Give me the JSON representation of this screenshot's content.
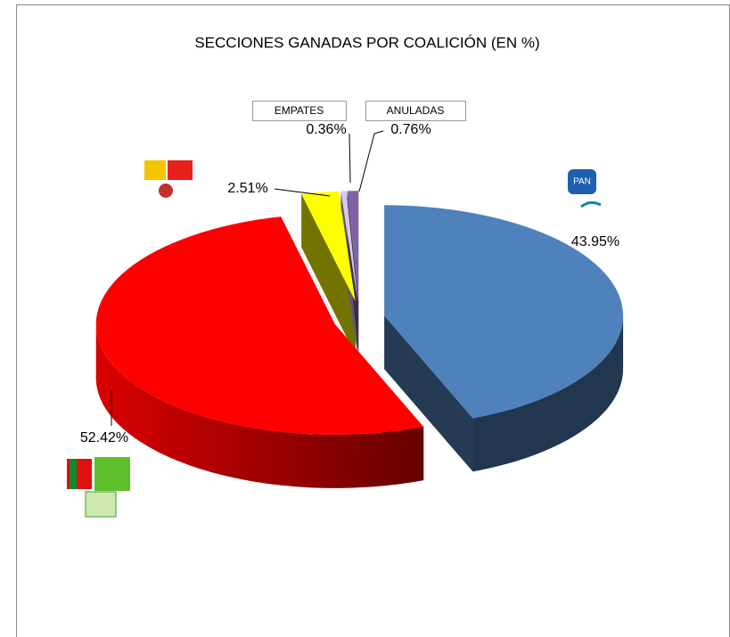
{
  "chart_data": {
    "type": "pie3d",
    "title": "SECCIONES GANADAS POR COALICIÓN (EN %)",
    "categories": [
      null,
      null,
      null,
      "EMPATES",
      "ANULADAS"
    ],
    "values": [
      43.95,
      52.42,
      2.51,
      0.36,
      0.76
    ],
    "value_labels": [
      "43.95%",
      "52.42%",
      "2.51%",
      "0.36%",
      "0.76%"
    ],
    "colors": [
      "#4f81bd",
      "#ff0000",
      "#ffff00",
      "#d9c8ec",
      "#8064a2"
    ]
  }
}
